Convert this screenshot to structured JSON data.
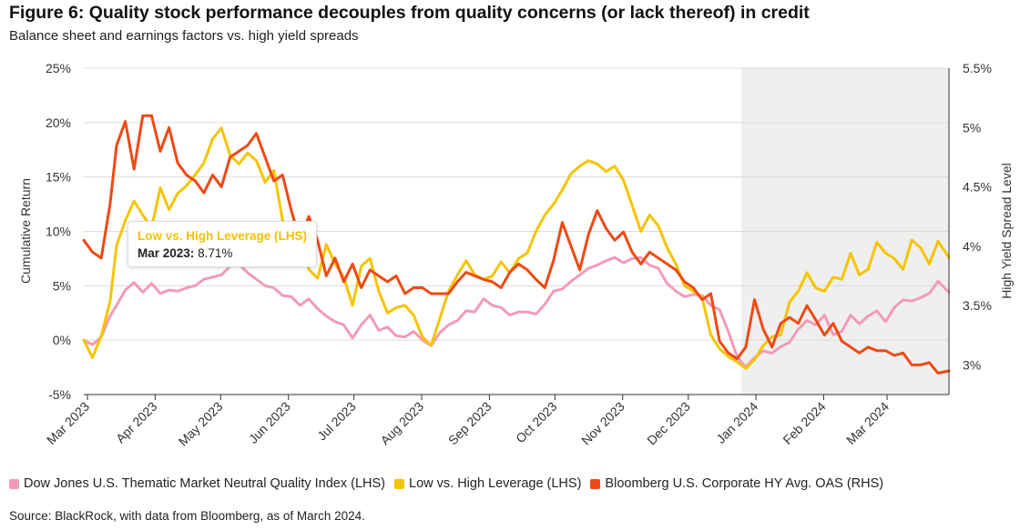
{
  "title": "Figure 6: Quality stock performance decouples from quality concerns (or lack thereof) in credit",
  "subtitle": "Balance sheet and earnings factors vs. high yield spreads",
  "source": "Source: BlackRock, with data from Bloomberg, as of March 2024.",
  "tooltip": {
    "series": "Low vs. High Leverage (LHS)",
    "date": "Mar 2023:",
    "value": "8.71%"
  },
  "colors": {
    "quality": "#f29bb6",
    "leverage": "#f5c400",
    "oas": "#ee4a14",
    "shade": "#efefef",
    "grid": "#dcdcdc"
  },
  "chart_data": {
    "type": "line",
    "title": "Figure 6: Quality stock performance decouples from quality concerns (or lack thereof) in credit",
    "subtitle": "Balance sheet and earnings factors vs. high yield spreads",
    "ylabel": "Cumulative Return",
    "y2label": "High Yield Spread Level",
    "ylim": [
      -5,
      25
    ],
    "y2lim": [
      2.75,
      5.5
    ],
    "yticks": [
      "25%",
      "20%",
      "15%",
      "10%",
      "5%",
      "0%",
      "-5%"
    ],
    "y2ticks": [
      "5.5%",
      "5%",
      "4.5%",
      "4%",
      "3.5%",
      "3%"
    ],
    "xticks": [
      "Mar 2023",
      "Apr 2023",
      "May 2023",
      "Jun 2023",
      "Jul 2023",
      "Aug 2023",
      "Sep 2023",
      "Oct 2023",
      "Nov 2023",
      "Dec 2023",
      "Jan 2024",
      "Feb 2024",
      "Mar 2024"
    ],
    "shaded_region": {
      "from": "2023-12-27",
      "to": "2024-03-31"
    },
    "grid": "horizontal",
    "legend_position": "bottom",
    "series": [
      {
        "name": "Dow Jones U.S. Thematic Market Neutral Quality Index (LHS)",
        "axis": "left",
        "x": [
          "2023-03-01",
          "2023-03-05",
          "2023-03-09",
          "2023-03-13",
          "2023-03-16",
          "2023-03-20",
          "2023-03-24",
          "2023-03-28",
          "2023-04-01",
          "2023-04-05",
          "2023-04-09",
          "2023-04-13",
          "2023-04-17",
          "2023-04-21",
          "2023-04-25",
          "2023-04-29",
          "2023-05-03",
          "2023-05-07",
          "2023-05-11",
          "2023-05-15",
          "2023-05-19",
          "2023-05-23",
          "2023-05-27",
          "2023-05-31",
          "2023-06-04",
          "2023-06-08",
          "2023-06-12",
          "2023-06-16",
          "2023-06-20",
          "2023-06-24",
          "2023-06-28",
          "2023-07-02",
          "2023-07-06",
          "2023-07-10",
          "2023-07-14",
          "2023-07-18",
          "2023-07-22",
          "2023-07-26",
          "2023-07-30",
          "2023-08-03",
          "2023-08-07",
          "2023-08-11",
          "2023-08-15",
          "2023-08-19",
          "2023-08-23",
          "2023-08-27",
          "2023-08-31",
          "2023-09-04",
          "2023-09-08",
          "2023-09-12",
          "2023-09-16",
          "2023-09-20",
          "2023-09-24",
          "2023-09-28",
          "2023-10-02",
          "2023-10-06",
          "2023-10-10",
          "2023-10-14",
          "2023-10-18",
          "2023-10-22",
          "2023-10-26",
          "2023-10-30",
          "2023-11-03",
          "2023-11-07",
          "2023-11-11",
          "2023-11-15",
          "2023-11-19",
          "2023-11-23",
          "2023-11-27",
          "2023-12-01",
          "2023-12-05",
          "2023-12-09",
          "2023-12-13",
          "2023-12-17",
          "2023-12-21",
          "2023-12-25",
          "2023-12-29",
          "2024-01-02",
          "2024-01-06",
          "2024-01-10",
          "2024-01-14",
          "2024-01-18",
          "2024-01-22",
          "2024-01-26",
          "2024-01-30",
          "2024-02-03",
          "2024-02-07",
          "2024-02-11",
          "2024-02-15",
          "2024-02-19",
          "2024-02-23",
          "2024-02-27",
          "2024-03-02",
          "2024-03-06",
          "2024-03-10",
          "2024-03-14",
          "2024-03-18",
          "2024-03-22",
          "2024-03-26",
          "2024-03-31"
        ],
        "values": [
          0.0,
          -0.4,
          0.3,
          2.2,
          3.2,
          4.6,
          5.3,
          4.4,
          5.2,
          4.3,
          4.6,
          4.5,
          4.8,
          5.0,
          5.6,
          5.8,
          6.0,
          6.8,
          7.0,
          6.2,
          5.6,
          5.0,
          4.8,
          4.1,
          4.0,
          3.2,
          3.8,
          2.9,
          2.2,
          1.7,
          1.4,
          0.2,
          1.4,
          2.3,
          0.9,
          1.2,
          0.4,
          0.3,
          0.8,
          0.0,
          -0.5,
          0.7,
          1.4,
          1.8,
          2.7,
          2.6,
          3.8,
          3.2,
          3.0,
          2.3,
          2.6,
          2.6,
          2.4,
          3.3,
          4.5,
          4.7,
          5.4,
          6.0,
          6.6,
          6.9,
          7.3,
          7.6,
          7.1,
          7.5,
          7.6,
          6.9,
          6.6,
          5.2,
          4.5,
          4.0,
          4.2,
          4.1,
          3.2,
          2.8,
          0.8,
          -1.5,
          -2.5,
          -1.6,
          -1.0,
          -1.2,
          -0.6,
          -0.2,
          1.0,
          1.8,
          1.4,
          2.3,
          0.5,
          0.8,
          2.3,
          1.5,
          2.2,
          2.7,
          1.7,
          3.0,
          3.7,
          3.6,
          3.9,
          4.3,
          5.4,
          4.4
        ]
      },
      {
        "name": "Low vs. High Leverage (LHS)",
        "axis": "left",
        "x": [
          "2023-03-01",
          "2023-03-05",
          "2023-03-09",
          "2023-03-13",
          "2023-03-16",
          "2023-03-20",
          "2023-03-24",
          "2023-03-28",
          "2023-04-01",
          "2023-04-05",
          "2023-04-09",
          "2023-04-13",
          "2023-04-17",
          "2023-04-21",
          "2023-04-25",
          "2023-04-29",
          "2023-05-03",
          "2023-05-07",
          "2023-05-11",
          "2023-05-15",
          "2023-05-19",
          "2023-05-23",
          "2023-05-27",
          "2023-05-31",
          "2023-06-04",
          "2023-06-08",
          "2023-06-12",
          "2023-06-16",
          "2023-06-20",
          "2023-06-24",
          "2023-06-28",
          "2023-07-02",
          "2023-07-06",
          "2023-07-10",
          "2023-07-14",
          "2023-07-18",
          "2023-07-22",
          "2023-07-26",
          "2023-07-30",
          "2023-08-03",
          "2023-08-07",
          "2023-08-11",
          "2023-08-15",
          "2023-08-19",
          "2023-08-23",
          "2023-08-27",
          "2023-08-31",
          "2023-09-04",
          "2023-09-08",
          "2023-09-12",
          "2023-09-16",
          "2023-09-20",
          "2023-09-24",
          "2023-09-28",
          "2023-10-02",
          "2023-10-06",
          "2023-10-10",
          "2023-10-14",
          "2023-10-18",
          "2023-10-22",
          "2023-10-26",
          "2023-10-30",
          "2023-11-03",
          "2023-11-07",
          "2023-11-11",
          "2023-11-15",
          "2023-11-19",
          "2023-11-23",
          "2023-11-27",
          "2023-12-01",
          "2023-12-05",
          "2023-12-09",
          "2023-12-13",
          "2023-12-17",
          "2023-12-21",
          "2023-12-25",
          "2023-12-29",
          "2024-01-02",
          "2024-01-06",
          "2024-01-10",
          "2024-01-14",
          "2024-01-18",
          "2024-01-22",
          "2024-01-26",
          "2024-01-30",
          "2024-02-03",
          "2024-02-07",
          "2024-02-11",
          "2024-02-15",
          "2024-02-19",
          "2024-02-23",
          "2024-02-27",
          "2024-03-02",
          "2024-03-06",
          "2024-03-10",
          "2024-03-14",
          "2024-03-18",
          "2024-03-22",
          "2024-03-26",
          "2024-03-31"
        ],
        "values": [
          0.0,
          -1.6,
          0.4,
          3.5,
          8.7,
          11.0,
          12.8,
          11.5,
          10.3,
          14.0,
          12.0,
          13.5,
          14.2,
          15.2,
          16.3,
          18.5,
          19.5,
          17.0,
          16.2,
          17.2,
          16.5,
          14.5,
          15.6,
          11.0,
          10.0,
          9.5,
          6.5,
          5.7,
          8.8,
          7.0,
          5.8,
          3.2,
          6.8,
          7.5,
          4.5,
          2.5,
          3.0,
          3.2,
          2.3,
          0.3,
          -0.5,
          2.0,
          4.5,
          6.0,
          7.3,
          6.0,
          5.6,
          5.9,
          7.2,
          6.2,
          7.5,
          8.0,
          10.0,
          11.5,
          12.5,
          13.8,
          15.3,
          16.0,
          16.5,
          16.2,
          15.5,
          16.0,
          14.7,
          12.4,
          10.0,
          11.5,
          10.5,
          8.5,
          7.0,
          5.0,
          4.5,
          3.9,
          0.5,
          -0.8,
          -1.5,
          -2.0,
          -2.6,
          -1.8,
          -0.5,
          0.3,
          0.5,
          3.5,
          4.5,
          6.2,
          4.8,
          4.5,
          5.8,
          5.6,
          8.0,
          6.0,
          6.5,
          9.0,
          8.0,
          7.5,
          6.5,
          9.2,
          8.5,
          7.0,
          9.1,
          7.6
        ]
      },
      {
        "name": "Bloomberg U.S. Corporate HY Avg. OAS (RHS)",
        "axis": "right",
        "x": [
          "2023-03-01",
          "2023-03-05",
          "2023-03-09",
          "2023-03-13",
          "2023-03-16",
          "2023-03-20",
          "2023-03-24",
          "2023-03-28",
          "2023-04-01",
          "2023-04-05",
          "2023-04-09",
          "2023-04-13",
          "2023-04-17",
          "2023-04-21",
          "2023-04-25",
          "2023-04-29",
          "2023-05-03",
          "2023-05-07",
          "2023-05-11",
          "2023-05-15",
          "2023-05-19",
          "2023-05-23",
          "2023-05-27",
          "2023-05-31",
          "2023-06-04",
          "2023-06-08",
          "2023-06-12",
          "2023-06-16",
          "2023-06-20",
          "2023-06-24",
          "2023-06-28",
          "2023-07-02",
          "2023-07-06",
          "2023-07-10",
          "2023-07-14",
          "2023-07-18",
          "2023-07-22",
          "2023-07-26",
          "2023-07-30",
          "2023-08-03",
          "2023-08-07",
          "2023-08-11",
          "2023-08-15",
          "2023-08-19",
          "2023-08-23",
          "2023-08-27",
          "2023-08-31",
          "2023-09-04",
          "2023-09-08",
          "2023-09-12",
          "2023-09-16",
          "2023-09-20",
          "2023-09-24",
          "2023-09-28",
          "2023-10-02",
          "2023-10-06",
          "2023-10-10",
          "2023-10-14",
          "2023-10-18",
          "2023-10-22",
          "2023-10-26",
          "2023-10-30",
          "2023-11-03",
          "2023-11-07",
          "2023-11-11",
          "2023-11-15",
          "2023-11-19",
          "2023-11-23",
          "2023-11-27",
          "2023-12-01",
          "2023-12-05",
          "2023-12-09",
          "2023-12-13",
          "2023-12-17",
          "2023-12-21",
          "2023-12-25",
          "2023-12-29",
          "2024-01-02",
          "2024-01-06",
          "2024-01-10",
          "2024-01-14",
          "2024-01-18",
          "2024-01-22",
          "2024-01-26",
          "2024-01-30",
          "2024-02-03",
          "2024-02-07",
          "2024-02-11",
          "2024-02-15",
          "2024-02-19",
          "2024-02-23",
          "2024-02-27",
          "2024-03-02",
          "2024-03-06",
          "2024-03-10",
          "2024-03-14",
          "2024-03-18",
          "2024-03-22",
          "2024-03-26",
          "2024-03-31"
        ],
        "values": [
          4.05,
          3.95,
          3.9,
          4.35,
          4.85,
          5.05,
          4.65,
          5.1,
          5.1,
          4.8,
          5.0,
          4.7,
          4.6,
          4.55,
          4.45,
          4.6,
          4.5,
          4.75,
          4.8,
          4.85,
          4.95,
          4.75,
          4.55,
          4.6,
          4.3,
          4.05,
          4.25,
          4.05,
          3.75,
          3.9,
          3.7,
          3.85,
          3.65,
          3.8,
          3.75,
          3.7,
          3.75,
          3.6,
          3.65,
          3.65,
          3.6,
          3.6,
          3.6,
          3.7,
          3.78,
          3.75,
          3.72,
          3.7,
          3.65,
          3.78,
          3.85,
          3.8,
          3.72,
          3.65,
          3.88,
          4.2,
          4.0,
          3.8,
          4.1,
          4.3,
          4.15,
          4.05,
          4.12,
          3.95,
          3.85,
          3.95,
          3.9,
          3.85,
          3.8,
          3.7,
          3.65,
          3.55,
          3.6,
          3.2,
          3.1,
          3.05,
          3.15,
          3.55,
          3.3,
          3.15,
          3.35,
          3.4,
          3.35,
          3.5,
          3.38,
          3.25,
          3.35,
          3.2,
          3.15,
          3.1,
          3.15,
          3.12,
          3.12,
          3.08,
          3.1,
          3.0,
          3.0,
          3.02,
          2.93,
          2.95
        ]
      }
    ]
  }
}
